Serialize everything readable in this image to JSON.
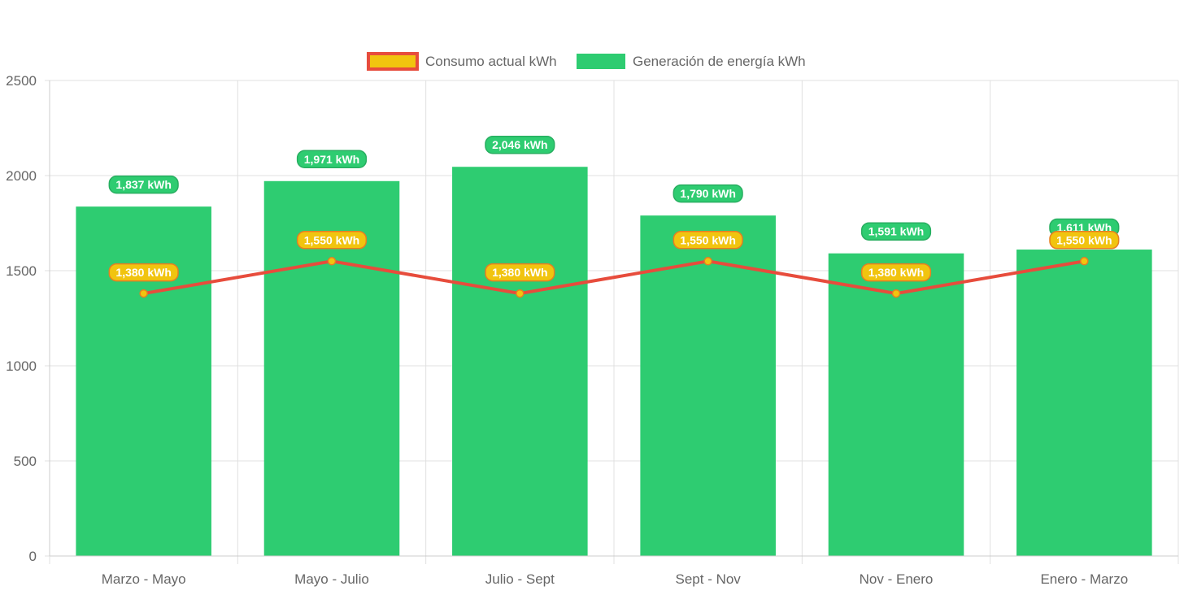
{
  "colors": {
    "bar": "#2ecc71",
    "line": "#e74c3c",
    "point": "#f1c40f",
    "label_green_bg": "#2ecc71",
    "label_yellow_bg": "#f1c40f",
    "label_yellow_border": "#e67e22",
    "grid": "#e0e0e0",
    "axis_text": "#666666"
  },
  "chart_data": {
    "type": "bar",
    "title": "",
    "xlabel": "",
    "ylabel": "",
    "ylim": [
      0,
      2500
    ],
    "yticks": [
      0,
      500,
      1000,
      1500,
      2000,
      2500
    ],
    "grid": true,
    "legend_position": "top",
    "categories": [
      "Marzo - Mayo",
      "Mayo - Julio",
      "Julio - Sept",
      "Sept - Nov",
      "Nov - Enero",
      "Enero - Marzo"
    ],
    "series": [
      {
        "name": "Consumo actual kWh",
        "type": "line",
        "values": [
          1380,
          1550,
          1380,
          1550,
          1380,
          1550
        ],
        "labels": [
          "1,380 kWh",
          "1,550 kWh",
          "1,380 kWh",
          "1,550 kWh",
          "1,380 kWh",
          "1,550 kWh"
        ]
      },
      {
        "name": "Generación de energía kWh",
        "type": "bar",
        "values": [
          1837,
          1971,
          2046,
          1790,
          1591,
          1611
        ],
        "labels": [
          "1,837 kWh",
          "1,971 kWh",
          "2,046 kWh",
          "1,790 kWh",
          "1,591 kWh",
          "1,611 kWh"
        ]
      }
    ]
  }
}
